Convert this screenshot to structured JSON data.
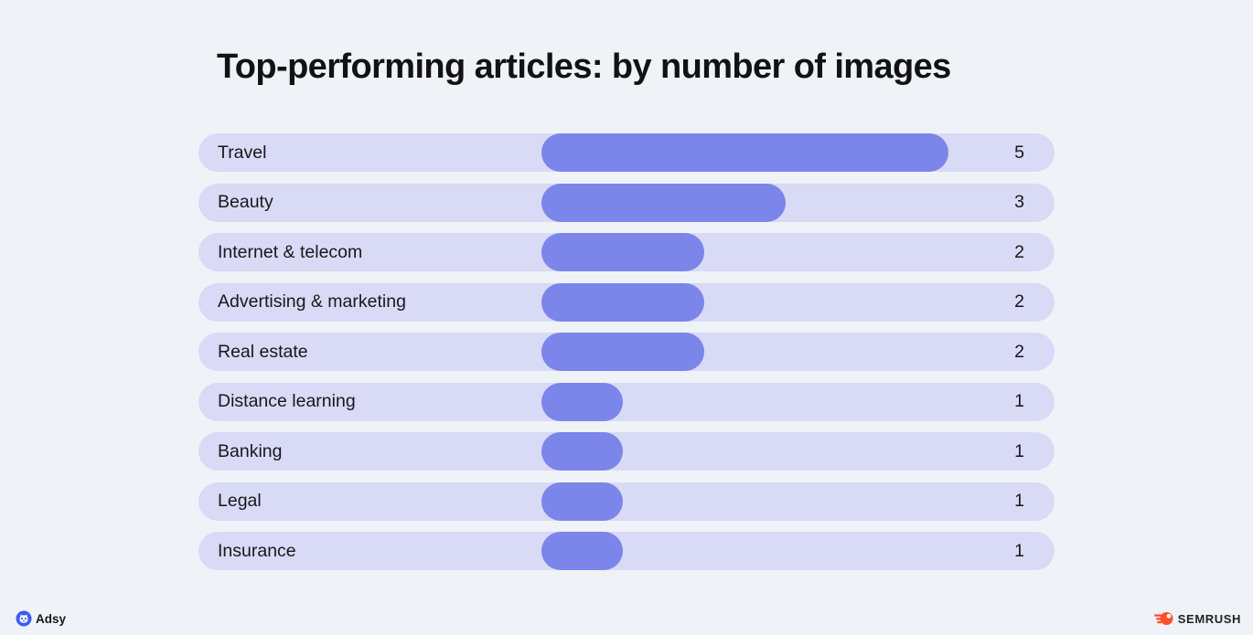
{
  "title": "Top-performing articles: by number of images",
  "chart_data": {
    "type": "bar",
    "orientation": "horizontal",
    "title": "Top-performing articles: by number of images",
    "categories": [
      "Travel",
      "Beauty",
      "Internet & telecom",
      "Advertising & marketing",
      "Real estate",
      "Distance learning",
      "Banking",
      "Legal",
      "Insurance"
    ],
    "values": [
      5,
      3,
      2,
      2,
      2,
      1,
      1,
      1,
      1
    ],
    "xlim": [
      0,
      5
    ],
    "value_labels": [
      "5",
      "3",
      "2",
      "2",
      "2",
      "1",
      "1",
      "1",
      "1"
    ],
    "grid": false,
    "legend": false
  },
  "footer": {
    "left_brand": "Adsy",
    "right_brand": "SEMRUSH"
  },
  "colors": {
    "background": "#eff3f8",
    "row_background": "#d9daf6",
    "bar_fill": "#7c85e9",
    "title_text": "#121214",
    "label_text": "#17181a",
    "adsy_blue": "#3e5bf0",
    "semrush_orange": "#ff4f2c"
  }
}
